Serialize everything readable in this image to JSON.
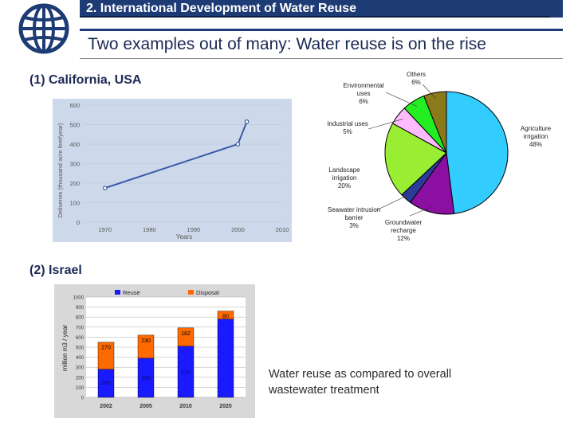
{
  "header": {
    "title": "2. International Development of Water Reuse",
    "subtitle": "Two examples out of many:  Water reuse is on the rise"
  },
  "logo": {
    "icon": "world-bank-globe-icon"
  },
  "sections": {
    "california": "(1) California, USA",
    "israel": "(2) Israel"
  },
  "note": "Water reuse as compared to overall wastewater treatment",
  "colors": {
    "brand": "#1d3b74",
    "chart_bg": "#cdd9ea",
    "line": "#3a5aa8",
    "reuse": "#1a1aff",
    "disposal": "#ff6a00"
  },
  "chart_data": [
    {
      "type": "line",
      "title": "",
      "xlabel": "Years",
      "ylabel": "Deliveries (thousand acre feet/year)",
      "xticks": [
        "1970",
        "1980",
        "1990",
        "2000",
        "2010"
      ],
      "yticks": [
        "0",
        "100",
        "200",
        "300",
        "400",
        "500",
        "600"
      ],
      "xlim": [
        1965,
        2010
      ],
      "ylim": [
        0,
        600
      ],
      "series": [
        {
          "x": [
            1970,
            2000,
            2002
          ],
          "y": [
            175,
            400,
            515
          ]
        }
      ]
    },
    {
      "type": "pie",
      "title": "",
      "slices": [
        {
          "label": "Agriculture irrigation",
          "pct": "48%",
          "value": 48,
          "color": "#33ccff"
        },
        {
          "label": "Groundwater recharge",
          "pct": "12%",
          "value": 12,
          "color": "#8b0fa0"
        },
        {
          "label": "Seawater intrusion barrier",
          "pct": "3%",
          "value": 3,
          "color": "#2b3b9a"
        },
        {
          "label": "Landscape irrigation",
          "pct": "20%",
          "value": 20,
          "color": "#99ee33"
        },
        {
          "label": "Industrial uses",
          "pct": "5%",
          "value": 5,
          "color": "#ffbbff"
        },
        {
          "label": "Environmental uses",
          "pct": "6%",
          "value": 6,
          "color": "#22ee22"
        },
        {
          "label": "Others",
          "pct": "6%",
          "value": 6,
          "color": "#8a7a1a"
        }
      ]
    },
    {
      "type": "bar",
      "title": "",
      "ylabel": "million m3 / year",
      "legend": [
        "Reuse",
        "Disposal"
      ],
      "legend_position": "top",
      "categories": [
        "2002",
        "2005",
        "2010",
        "2020"
      ],
      "yticks": [
        "0",
        "100",
        "200",
        "300",
        "400",
        "500",
        "600",
        "700",
        "800",
        "900",
        "1000"
      ],
      "ylim": [
        0,
        1000
      ],
      "series": [
        {
          "name": "Reuse",
          "values": [
            280,
            390,
            510,
            780
          ]
        },
        {
          "name": "Disposal",
          "values": [
            270,
            230,
            182,
            80
          ]
        }
      ],
      "data_labels": {
        "Reuse": [
          "280",
          "390",
          "510",
          ""
        ],
        "Disposal": [
          "270",
          "230",
          "182",
          "80"
        ]
      }
    }
  ]
}
